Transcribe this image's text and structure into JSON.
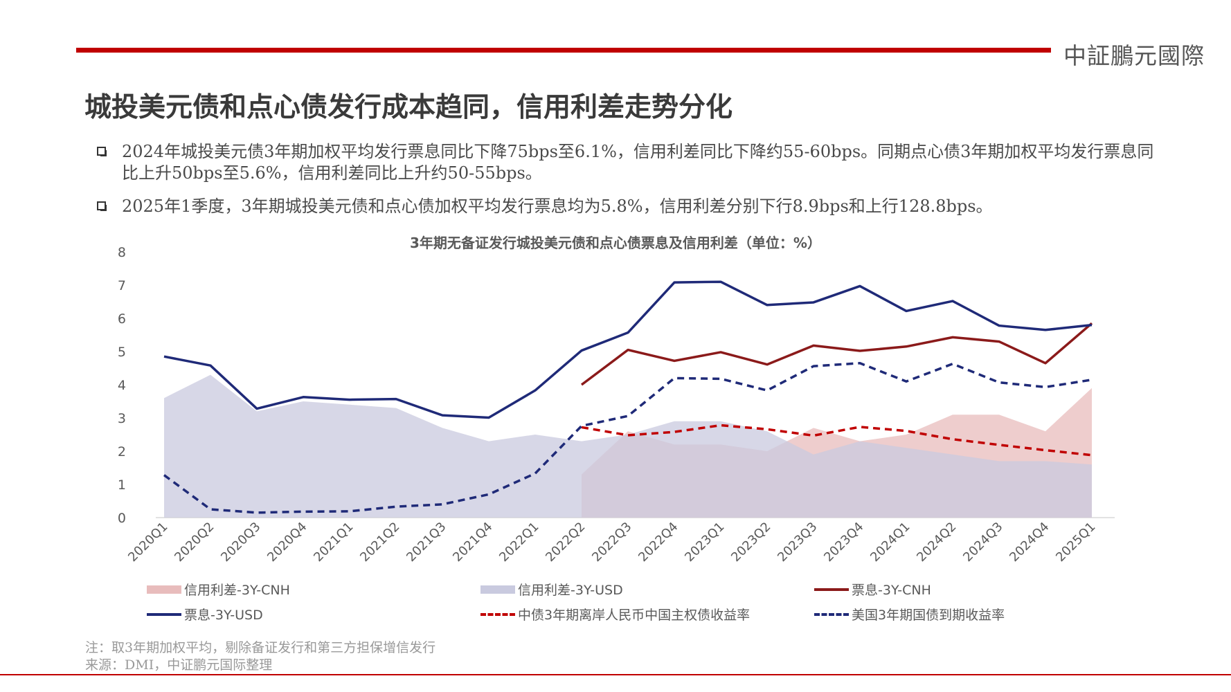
{
  "header": {
    "brand": "中証鵬元國際",
    "title": "城投美元债和点心债发行成本趋同，信用利差走势分化"
  },
  "bullets": [
    "2024年城投美元债3年期加权平均发行票息同比下降75bps至6.1%，信用利差同比下降约55-60bps。同期点心债3年期加权平均发行票息同比上升50bps至5.6%，信用利差同比上升约50-55bps。",
    "2025年1季度，3年期城投美元债和点心债加权平均发行票息均为5.8%，信用利差分别下行8.9bps和上行128.8bps。"
  ],
  "notes": {
    "note": "注：取3年期加权平均，剔除备证发行和第三方担保增信发行",
    "source": "来源：DMI，中证鹏元国际整理"
  },
  "colors": {
    "brand_red": "#c00000",
    "cnh_area": "#e8bcbc",
    "usd_area": "#c9cadf",
    "cnh_line": "#8b1a1a",
    "usd_line": "#1f2a78"
  },
  "chart_data": {
    "type": "line",
    "title": "3年期无备证发行城投美元债和点心债票息及信用利差（单位：%）",
    "ylim": [
      0,
      8
    ],
    "yticks": [
      "0",
      "1",
      "2",
      "3",
      "4",
      "5",
      "6",
      "7",
      "8"
    ],
    "grid": false,
    "legend_position": "bottom",
    "categories": [
      "2020Q1",
      "2020Q2",
      "2020Q3",
      "2020Q4",
      "2021Q1",
      "2021Q2",
      "2021Q3",
      "2021Q4",
      "2022Q1",
      "2022Q2",
      "2022Q3",
      "2022Q4",
      "2023Q1",
      "2023Q2",
      "2023Q3",
      "2023Q4",
      "2024Q1",
      "2024Q2",
      "2024Q3",
      "2024Q4",
      "2025Q1"
    ],
    "series": [
      {
        "name": "信用利差-3Y-CNH",
        "kind": "area",
        "color": "#e8bcbc",
        "values": [
          null,
          null,
          null,
          null,
          null,
          null,
          null,
          null,
          null,
          1.3,
          2.6,
          2.2,
          2.2,
          2.0,
          2.7,
          2.3,
          2.5,
          3.1,
          3.1,
          2.6,
          3.9
        ]
      },
      {
        "name": "信用利差-3Y-USD",
        "kind": "area",
        "color": "#c9cadf",
        "values": [
          3.6,
          4.3,
          3.2,
          3.5,
          3.4,
          3.3,
          2.7,
          2.3,
          2.5,
          2.3,
          2.5,
          2.9,
          2.9,
          2.6,
          1.9,
          2.3,
          2.1,
          1.9,
          1.7,
          1.7,
          1.6
        ]
      },
      {
        "name": "票息-3Y-CNH",
        "kind": "line",
        "color": "#8b1a1a",
        "dash": false,
        "values": [
          null,
          null,
          null,
          null,
          null,
          null,
          null,
          null,
          null,
          4.0,
          5.05,
          4.72,
          4.98,
          4.61,
          5.18,
          5.02,
          5.15,
          5.43,
          5.3,
          4.65,
          5.85
        ]
      },
      {
        "name": "票息-3Y-USD",
        "kind": "line",
        "color": "#1f2a78",
        "dash": false,
        "values": [
          4.85,
          4.58,
          3.28,
          3.63,
          3.55,
          3.57,
          3.08,
          3.01,
          3.83,
          5.03,
          5.57,
          7.08,
          7.1,
          6.4,
          6.48,
          6.97,
          6.22,
          6.52,
          5.78,
          5.65,
          5.8
        ]
      },
      {
        "name": "中债3年期离岸人民币中国主权债收益率",
        "kind": "line",
        "color": "#c00000",
        "dash": true,
        "values": [
          null,
          null,
          null,
          null,
          null,
          null,
          null,
          null,
          null,
          2.72,
          2.48,
          2.58,
          2.78,
          2.66,
          2.47,
          2.73,
          2.61,
          2.36,
          2.19,
          2.03,
          1.88
        ]
      },
      {
        "name": "美国3年期国债到期收益率",
        "kind": "line",
        "color": "#1f2a78",
        "dash": true,
        "values": [
          1.28,
          0.25,
          0.15,
          0.18,
          0.19,
          0.33,
          0.4,
          0.7,
          1.33,
          2.76,
          3.06,
          4.2,
          4.18,
          3.83,
          4.56,
          4.65,
          4.1,
          4.63,
          4.07,
          3.93,
          4.15
        ]
      }
    ]
  }
}
